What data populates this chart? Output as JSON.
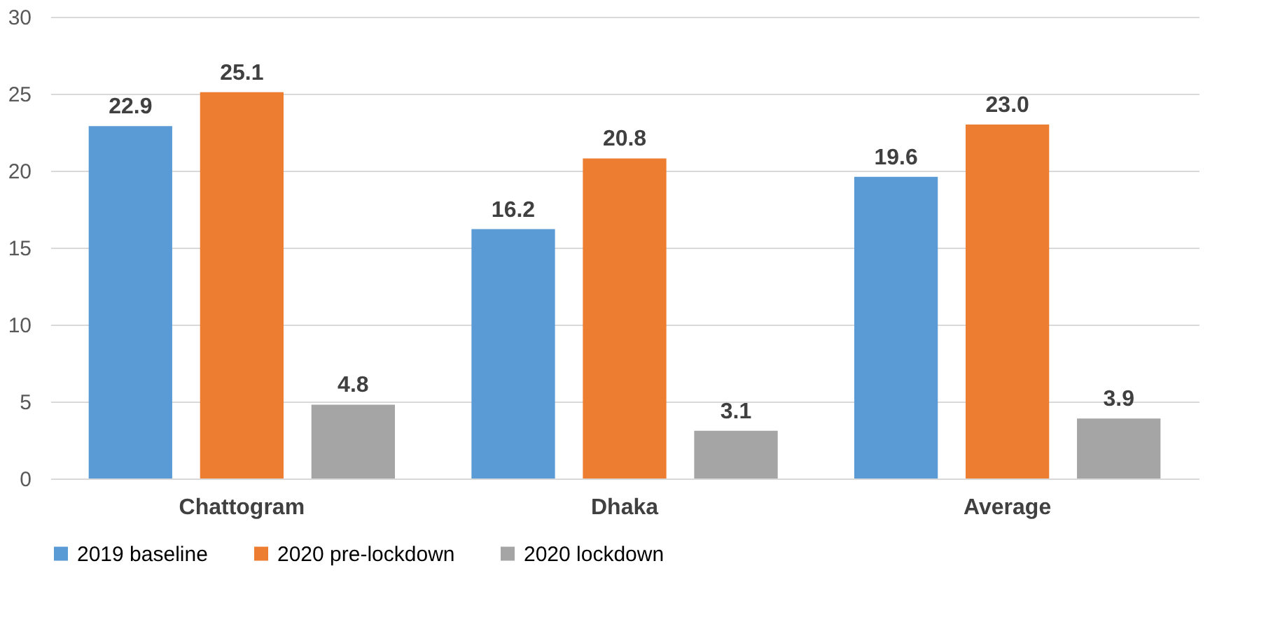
{
  "chart_data": {
    "type": "bar",
    "categories": [
      "Chattogram",
      "Dhaka",
      "Average"
    ],
    "series": [
      {
        "name": "2019 baseline",
        "color": "#5b9bd5",
        "values": [
          22.9,
          16.2,
          19.6
        ],
        "value_labels": [
          "22.9",
          "16.2",
          "19.6"
        ]
      },
      {
        "name": "2020 pre-lockdown",
        "color": "#ed7d31",
        "values": [
          25.1,
          20.8,
          23.0
        ],
        "value_labels": [
          "25.1",
          "20.8",
          "23.0"
        ]
      },
      {
        "name": "2020 lockdown",
        "color": "#a5a5a5",
        "values": [
          4.8,
          3.1,
          3.9
        ],
        "value_labels": [
          "4.8",
          "3.1",
          "3.9"
        ]
      }
    ],
    "ylim": [
      0,
      30
    ],
    "yticks": [
      0,
      5,
      10,
      15,
      20,
      25,
      30
    ],
    "grid": "y",
    "legend": "bottom"
  }
}
